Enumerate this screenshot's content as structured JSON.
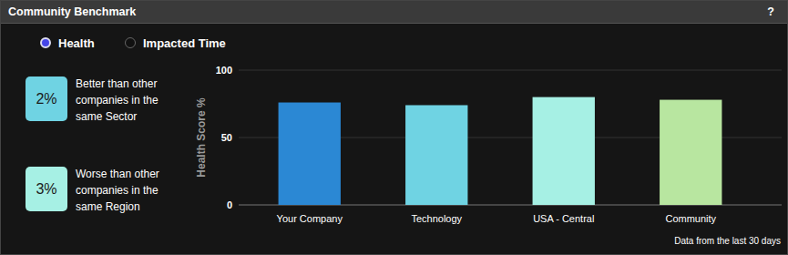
{
  "header": {
    "title": "Community Benchmark",
    "help": "?"
  },
  "options": [
    {
      "label": "Health",
      "selected": true
    },
    {
      "label": "Impacted Time",
      "selected": false
    }
  ],
  "stats": [
    {
      "value": "2%",
      "label": "Better than other companies in the same Sector"
    },
    {
      "value": "3%",
      "label": "Worse than other companies in the same Region"
    }
  ],
  "chart_data": {
    "type": "bar",
    "y_label": "Health Score %",
    "categories": [
      "Your Company",
      "Technology",
      "USA - Central",
      "Community"
    ],
    "values": [
      76,
      74,
      80,
      78
    ],
    "colors": [
      "#2b88d4",
      "#6fd3e3",
      "#a6f0e4",
      "#b8e6a0"
    ],
    "ylim": [
      0,
      100
    ],
    "yticks": [
      0,
      50,
      100
    ],
    "grid": true
  },
  "footer": "Data from the last 30 days"
}
